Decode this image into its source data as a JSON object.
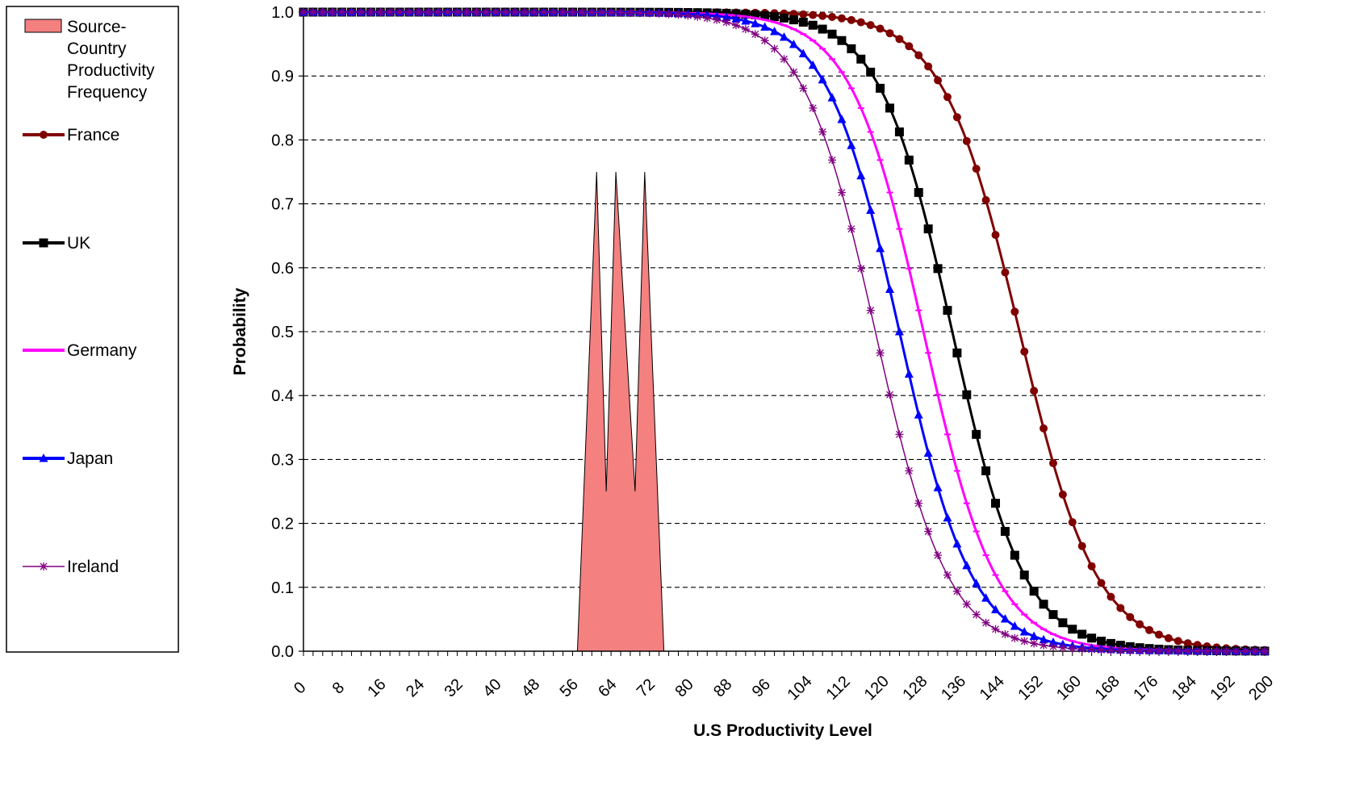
{
  "chart_data": {
    "type": "line",
    "xlabel": "U.S Productivity Level",
    "ylabel": "Probability",
    "xlim": [
      0,
      200
    ],
    "ylim": [
      0,
      1
    ],
    "x_ticks": [
      "0",
      "8",
      "16",
      "24",
      "32",
      "40",
      "48",
      "56",
      "64",
      "72",
      "80",
      "88",
      "96",
      "104",
      "112",
      "120",
      "128",
      "136",
      "144",
      "152",
      "160",
      "168",
      "176",
      "184",
      "192",
      "200"
    ],
    "y_ticks": [
      "0.0",
      "0.1",
      "0.2",
      "0.3",
      "0.4",
      "0.5",
      "0.6",
      "0.7",
      "0.8",
      "0.9",
      "1.0"
    ],
    "grid": "horizontal dashed",
    "legend_position": "left",
    "area_series": {
      "name": "Source-Country Productivity Frequency",
      "color": "#f48080",
      "points": [
        [
          57,
          0
        ],
        [
          61,
          0.75
        ],
        [
          63,
          0.25
        ],
        [
          65,
          0.75
        ],
        [
          69,
          0.25
        ],
        [
          71,
          0.75
        ],
        [
          75,
          0
        ]
      ]
    },
    "series": [
      {
        "name": "France",
        "color": "#800000",
        "marker": "circle",
        "midpoint": 149,
        "scale": 8.0
      },
      {
        "name": "UK",
        "color": "#000000",
        "marker": "square",
        "midpoint": 135,
        "scale": 7.5
      },
      {
        "name": "Germany",
        "color": "#ff00ff",
        "marker": "dash",
        "midpoint": 129,
        "scale": 7.5
      },
      {
        "name": "Japan",
        "color": "#0000ff",
        "marker": "triangle",
        "midpoint": 124,
        "scale": 7.5
      },
      {
        "name": "Ireland",
        "color": "#800080",
        "marker": "star",
        "midpoint": 119,
        "scale": 7.5
      }
    ]
  }
}
